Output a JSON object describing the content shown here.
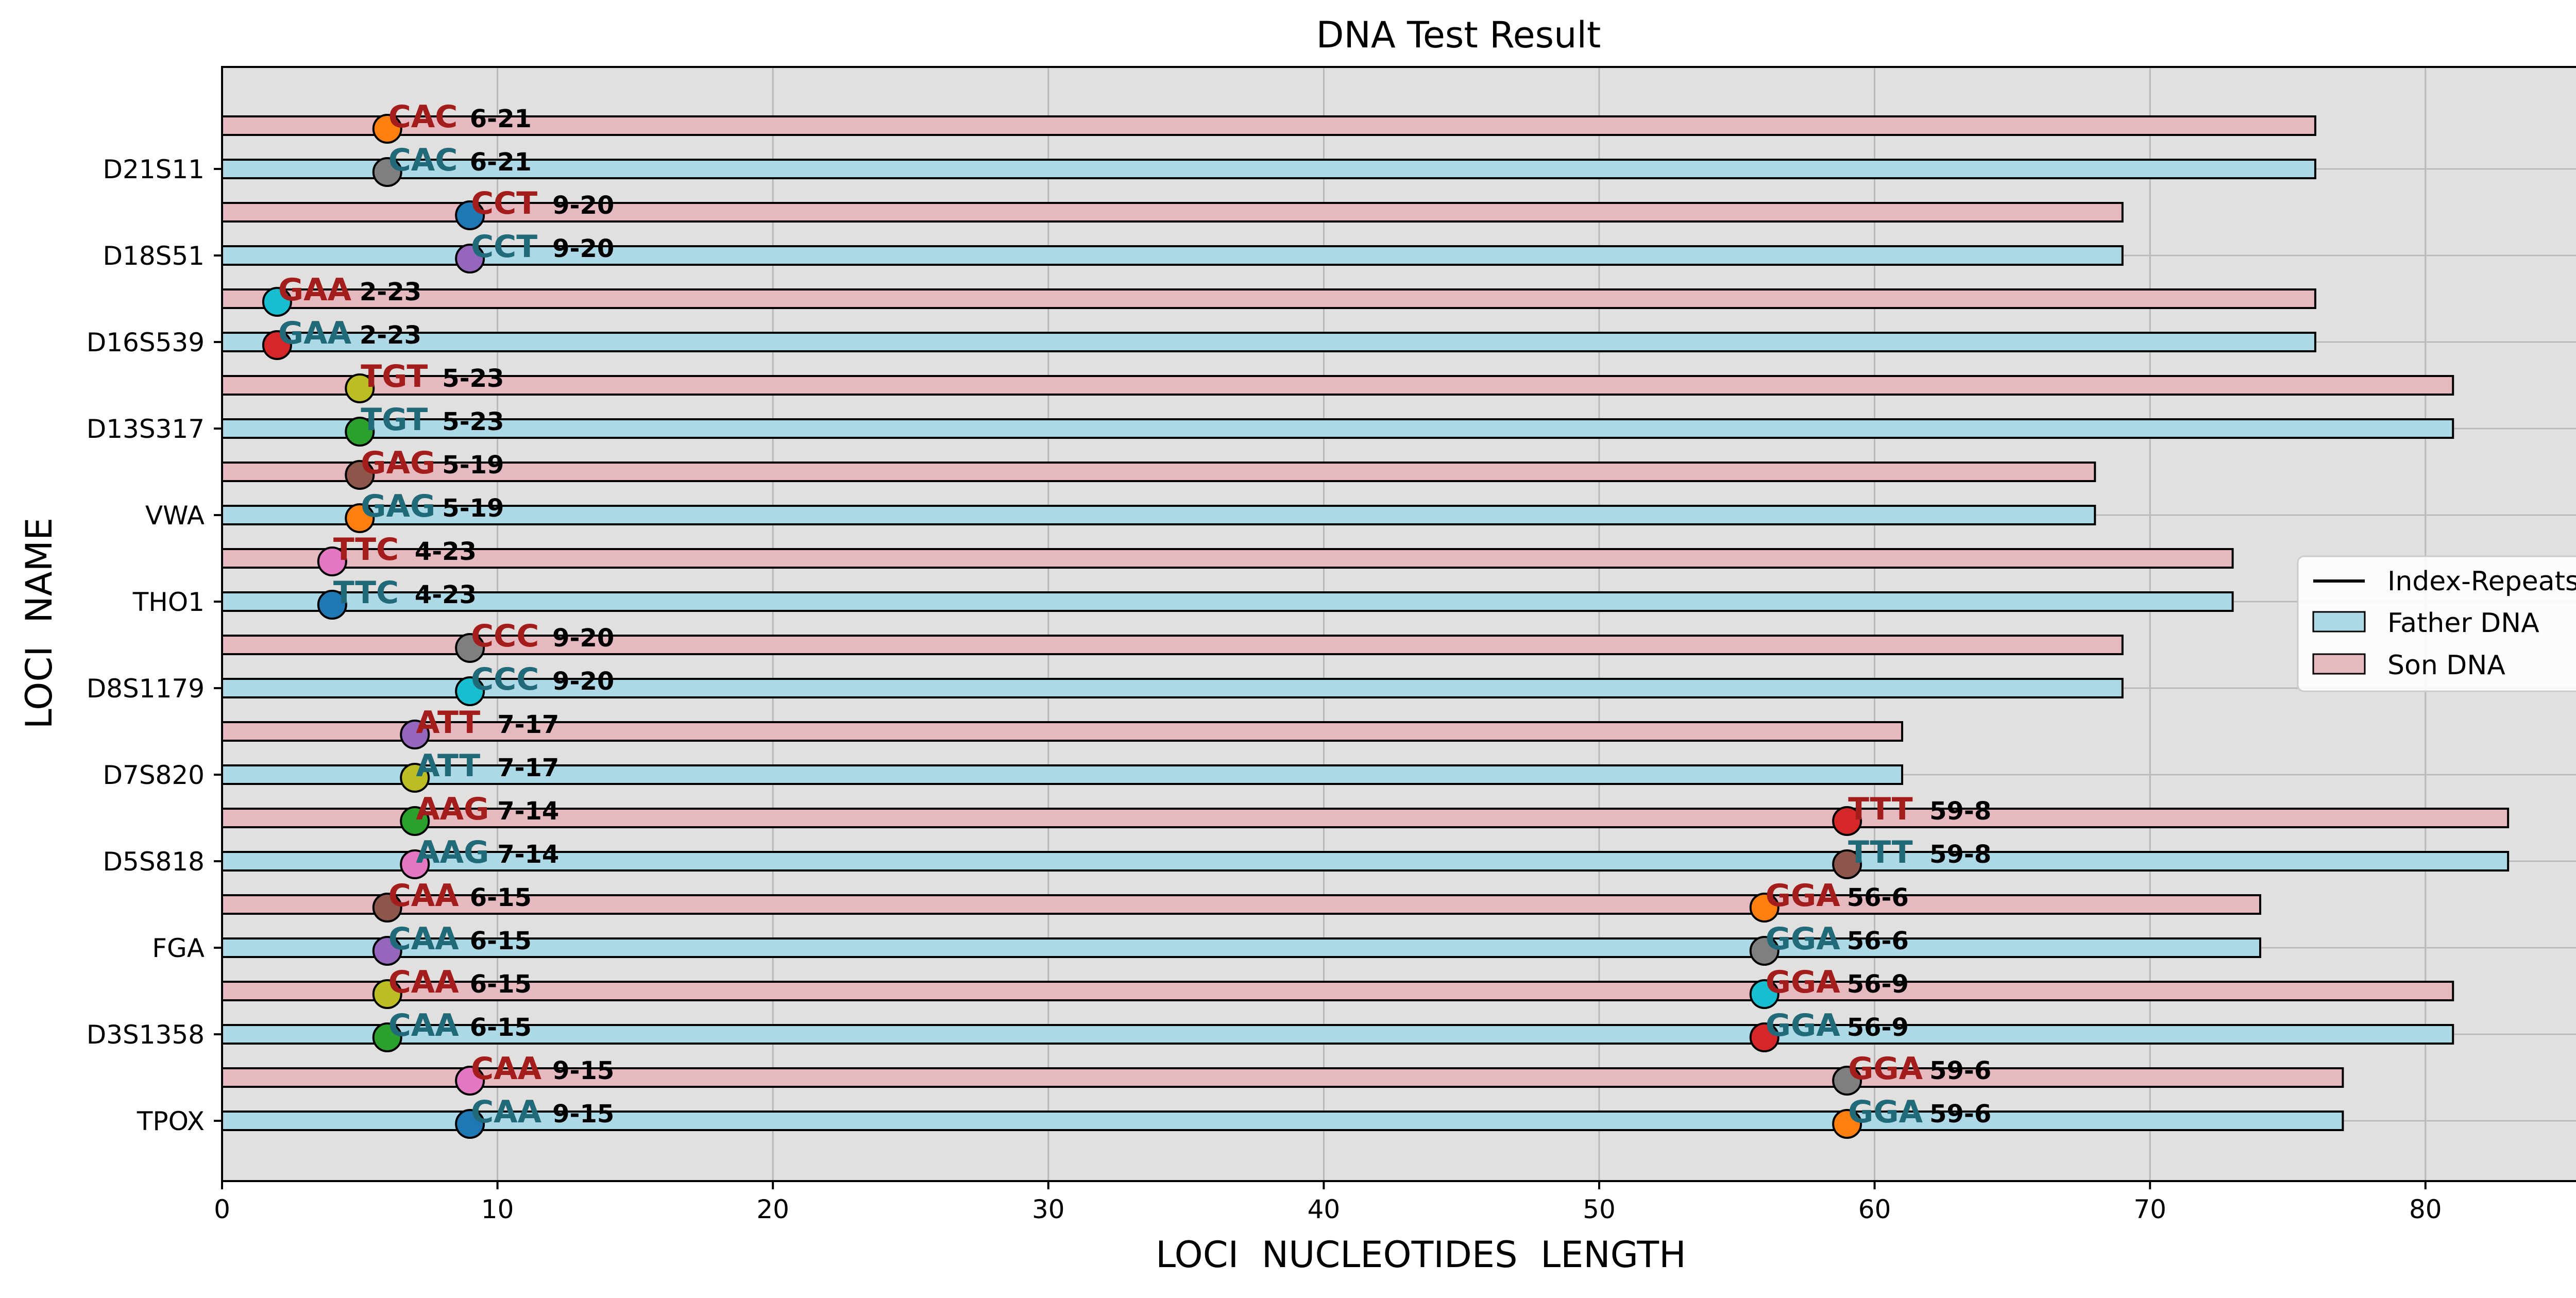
{
  "chart_data": {
    "type": "bar",
    "orientation": "horizontal",
    "title": "DNA Test Result",
    "xlabel": "LOCI  NUCLEOTIDES  LENGTH",
    "ylabel": "LOCI  NAME",
    "xlim": [
      0,
      87
    ],
    "xticks": [
      0,
      10,
      20,
      30,
      40,
      50,
      60,
      70,
      80
    ],
    "grid": true,
    "legend_position": "right",
    "legend": [
      "Index-Repeats",
      "Father DNA",
      "Son DNA"
    ],
    "colors": {
      "background": "#e2e0de",
      "father": "#add8e6",
      "son": "#e5b9bf",
      "father_text": "#216a7a",
      "son_text": "#a31d1d",
      "grid": "#b9b9b9"
    },
    "loci": [
      {
        "name": "TPOX",
        "father": 77,
        "son": 77,
        "markers": [
          {
            "pos": 9,
            "motif": "CAA",
            "label": "9-15",
            "father_color": "#1f77b4",
            "son_color": "#e377c2"
          },
          {
            "pos": 59,
            "motif": "GGA",
            "label": "59-6",
            "father_color": "#ff7f0e",
            "son_color": "#7f7f7f"
          }
        ]
      },
      {
        "name": "D3S1358",
        "father": 81,
        "son": 81,
        "markers": [
          {
            "pos": 6,
            "motif": "CAA",
            "label": "6-15",
            "father_color": "#2ca02c",
            "son_color": "#bcbd22"
          },
          {
            "pos": 56,
            "motif": "GGA",
            "label": "56-9",
            "father_color": "#d62728",
            "son_color": "#17becf"
          }
        ]
      },
      {
        "name": "FGA",
        "father": 74,
        "son": 74,
        "markers": [
          {
            "pos": 6,
            "motif": "CAA",
            "label": "6-15",
            "father_color": "#9467bd",
            "son_color": "#8c564b"
          },
          {
            "pos": 56,
            "motif": "GGA",
            "label": "56-6",
            "father_color": "#7f7f7f",
            "son_color": "#ff7f0e"
          }
        ]
      },
      {
        "name": "D5S818",
        "father": 83,
        "son": 83,
        "markers": [
          {
            "pos": 7,
            "motif": "AAG",
            "label": "7-14",
            "father_color": "#e377c2",
            "son_color": "#2ca02c"
          },
          {
            "pos": 59,
            "motif": "TTT",
            "label": "59-8",
            "father_color": "#8c564b",
            "son_color": "#d62728"
          }
        ]
      },
      {
        "name": "D7S820",
        "father": 61,
        "son": 61,
        "markers": [
          {
            "pos": 7,
            "motif": "ATT",
            "label": "7-17",
            "father_color": "#bcbd22",
            "son_color": "#9467bd"
          }
        ]
      },
      {
        "name": "D8S1179",
        "father": 69,
        "son": 69,
        "markers": [
          {
            "pos": 9,
            "motif": "CCC",
            "label": "9-20",
            "father_color": "#17becf",
            "son_color": "#7f7f7f"
          }
        ]
      },
      {
        "name": "THO1",
        "father": 73,
        "son": 73,
        "markers": [
          {
            "pos": 4,
            "motif": "TTC",
            "label": "4-23",
            "father_color": "#1f77b4",
            "son_color": "#e377c2"
          }
        ]
      },
      {
        "name": "VWA",
        "father": 68,
        "son": 68,
        "markers": [
          {
            "pos": 5,
            "motif": "GAG",
            "label": "5-19",
            "father_color": "#ff7f0e",
            "son_color": "#8c564b"
          }
        ]
      },
      {
        "name": "D13S317",
        "father": 81,
        "son": 81,
        "markers": [
          {
            "pos": 5,
            "motif": "TGT",
            "label": "5-23",
            "father_color": "#2ca02c",
            "son_color": "#bcbd22"
          }
        ]
      },
      {
        "name": "D16S539",
        "father": 76,
        "son": 76,
        "markers": [
          {
            "pos": 2,
            "motif": "GAA",
            "label": "2-23",
            "father_color": "#d62728",
            "son_color": "#17becf"
          }
        ]
      },
      {
        "name": "D18S51",
        "father": 69,
        "son": 69,
        "markers": [
          {
            "pos": 9,
            "motif": "CCT",
            "label": "9-20",
            "father_color": "#9467bd",
            "son_color": "#1f77b4"
          }
        ]
      },
      {
        "name": "D21S11",
        "father": 76,
        "son": 76,
        "markers": [
          {
            "pos": 6,
            "motif": "CAC",
            "label": "6-21",
            "father_color": "#7f7f7f",
            "son_color": "#ff7f0e"
          }
        ]
      }
    ]
  }
}
